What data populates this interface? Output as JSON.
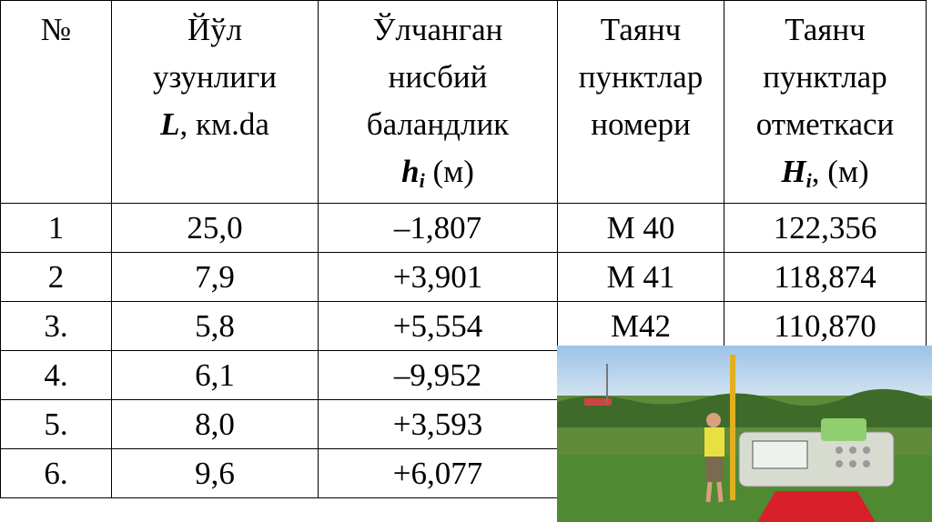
{
  "table": {
    "header": [
      {
        "lines": [
          "№"
        ]
      },
      {
        "lines": [
          "Йўл",
          "узунлиги"
        ],
        "symbol": "L",
        "unit": ", км.da"
      },
      {
        "lines": [
          "Ўлчанган",
          "нисбий",
          "баландлик"
        ],
        "symbol": "h",
        "subscript": "i",
        "unit": " (м)"
      },
      {
        "lines": [
          "Таянч",
          "пунктлар",
          "номери"
        ]
      },
      {
        "lines": [
          "Таянч",
          "пунктлар",
          "отметкаси"
        ],
        "symbol": "H",
        "subscript": "i",
        "unit": ", (м)"
      }
    ],
    "rows": [
      [
        "1",
        "25,0",
        "–1,807",
        "М 40",
        "122,356"
      ],
      [
        "2",
        "7,9",
        "+3,901",
        "М 41",
        "118,874"
      ],
      [
        "3.",
        "5,8",
        "+5,554",
        "М42",
        "110,870"
      ],
      [
        "4.",
        "6,1",
        "–9,952"
      ],
      [
        "5.",
        "8,0",
        "+3,593"
      ],
      [
        "6.",
        "9,6",
        "+6,077"
      ]
    ]
  }
}
